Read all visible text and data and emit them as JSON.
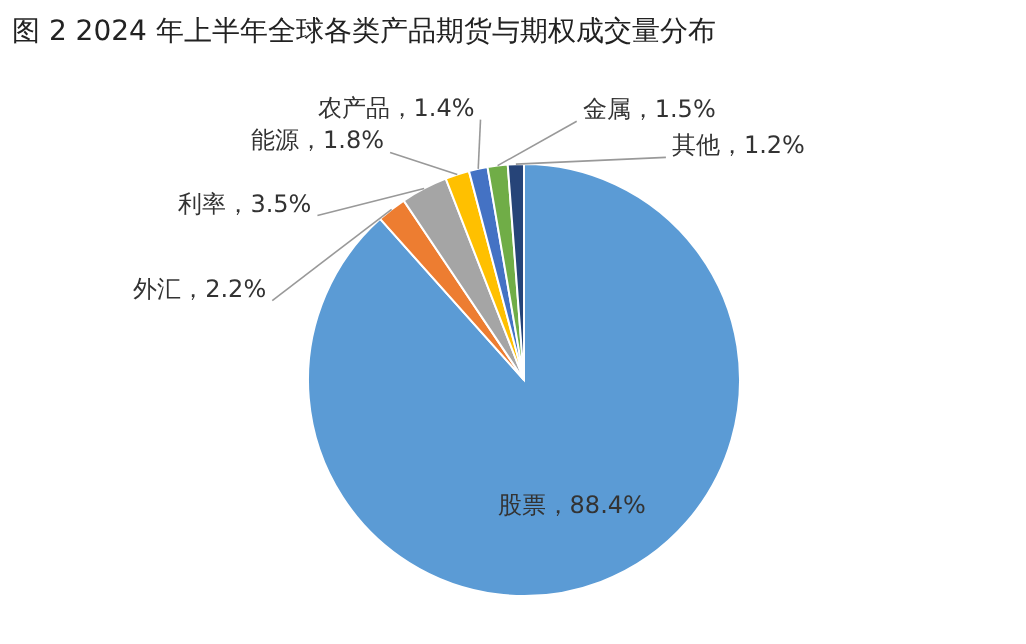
{
  "chart_data": {
    "type": "pie",
    "title": "图 2  2024 年上半年全球各类产品期货与期权成交量分布",
    "categories": [
      "股票",
      "外汇",
      "利率",
      "能源",
      "农产品",
      "金属",
      "其他"
    ],
    "values": [
      88.4,
      2.2,
      3.5,
      1.8,
      1.4,
      1.5,
      1.2
    ],
    "value_labels": [
      "88.4%",
      "2.2%",
      "3.5%",
      "1.8%",
      "1.4%",
      "1.5%",
      "1.2%"
    ],
    "colors": [
      "#5b9bd5",
      "#ed7d31",
      "#a5a5a5",
      "#ffc000",
      "#4472c4",
      "#70ad47",
      "#264478"
    ]
  }
}
